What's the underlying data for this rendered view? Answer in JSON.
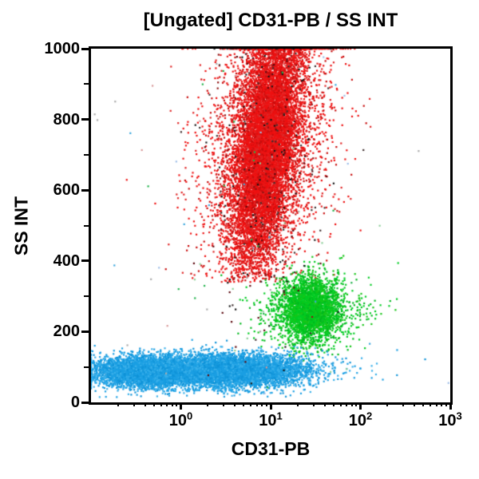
{
  "figure": {
    "title": "[Ungated] CD31-PB / SS INT"
  },
  "chart_data": {
    "type": "scatter",
    "subtype": "flow-cytometry-dot-plot",
    "title": "[Ungated] CD31-PB / SS INT",
    "xlabel": "CD31-PB",
    "ylabel": "SS INT",
    "x_scale": "log",
    "x_range_log10": [
      -1,
      3
    ],
    "x_major_ticks": [
      {
        "value_log10": 0,
        "base": "10",
        "exp": "0"
      },
      {
        "value_log10": 1,
        "base": "10",
        "exp": "1"
      },
      {
        "value_log10": 2,
        "base": "10",
        "exp": "2"
      },
      {
        "value_log10": 3,
        "base": "10",
        "exp": "3"
      }
    ],
    "y_scale": "linear",
    "ylim": [
      0,
      1000
    ],
    "y_major_ticks": [
      {
        "value": 0,
        "label": "0"
      },
      {
        "value": 200,
        "label": "200"
      },
      {
        "value": 400,
        "label": "400"
      },
      {
        "value": 600,
        "label": "600"
      },
      {
        "value": 800,
        "label": "800"
      },
      {
        "value": 1000,
        "label": "1000"
      }
    ],
    "y_minor_tick_values": [
      100,
      300,
      500,
      700,
      900
    ],
    "grid": false,
    "legend": false,
    "axis_color": "#000000",
    "background_color": "#ffffff",
    "populations": [
      {
        "name": "high-ss-red",
        "approx_center": {
          "cd31_pb": 9,
          "ss_int": 700
        },
        "approx_extent": {
          "cd31_pb": [
            3,
            25
          ],
          "ss_int": [
            390,
            1000
          ]
        },
        "n": 13000,
        "colors": [
          "#ee1111",
          "#ee1111",
          "#ee1111",
          "#e02525",
          "#c80d0d"
        ],
        "x_log_mean": 0.95,
        "x_log_sd": 0.16,
        "x_tail_frac": 0.25,
        "x_tail_sd": 0.35,
        "xy_slope_log_per_unit": 0.0005,
        "y_mean": 730,
        "y_sd": 185,
        "y_min": 340,
        "y_max": 1000,
        "pile_at_y_max": true
      },
      {
        "name": "mid-ss-green",
        "approx_center": {
          "cd31_pb": 27,
          "ss_int": 262
        },
        "approx_extent": {
          "cd31_pb": [
            10,
            70
          ],
          "ss_int": [
            150,
            360
          ]
        },
        "n": 3200,
        "colors": [
          "#00cc22",
          "#00cc22",
          "#18c518",
          "#00b81e"
        ],
        "x_log_mean": 1.44,
        "x_log_sd": 0.15,
        "x_tail_frac": 0.3,
        "x_tail_sd": 0.3,
        "y_mean": 262,
        "y_sd": 48,
        "y_min": 90,
        "y_max": 420
      },
      {
        "name": "low-ss-blue-left",
        "approx_center": {
          "cd31_pb": 0.4,
          "ss_int": 86
        },
        "n": 4200,
        "colors": [
          "#1b9fe3",
          "#1b9fe3",
          "#3ab0ea",
          "#0f93d8"
        ],
        "x_log_mean": -0.4,
        "x_log_sd": 0.27,
        "x_tail_frac": 0.1,
        "x_tail_sd": 0.5,
        "y_mean": 86,
        "y_sd": 21,
        "y_min": 12,
        "y_max": 220,
        "pile_at_x_min": true
      },
      {
        "name": "low-ss-blue-right",
        "approx_center": {
          "cd31_pb": 3.5,
          "ss_int": 90
        },
        "n": 6200,
        "colors": [
          "#1b9fe3",
          "#1b9fe3",
          "#3ab0ea",
          "#0f93d8"
        ],
        "x_log_mean": 0.55,
        "x_log_sd": 0.4,
        "x_tail_frac": 0.12,
        "x_tail_sd": 0.6,
        "y_mean": 90,
        "y_sd": 23,
        "y_min": 10,
        "y_max": 230
      },
      {
        "name": "dark-outliers",
        "n": 320,
        "colors": [
          "#161616",
          "#5c0a10",
          "#8f1414",
          "#403030"
        ],
        "x_log_mean": 0.95,
        "x_log_sd": 0.3,
        "x_tail_frac": 0.2,
        "x_tail_sd": 0.5,
        "y_mean": 680,
        "y_sd": 260,
        "y_min": 40,
        "y_max": 1000,
        "pile_at_y_max": true
      },
      {
        "name": "sparse-noise",
        "n": 80,
        "colors": [
          "#8fcf9a",
          "#9fbfe8",
          "#d89898",
          "#aaaaaa",
          "#20b24a",
          "#3aa6dd"
        ],
        "x_log_mean": 0.8,
        "x_log_sd": 0.9,
        "y_uniform": [
          15,
          995
        ]
      }
    ]
  }
}
